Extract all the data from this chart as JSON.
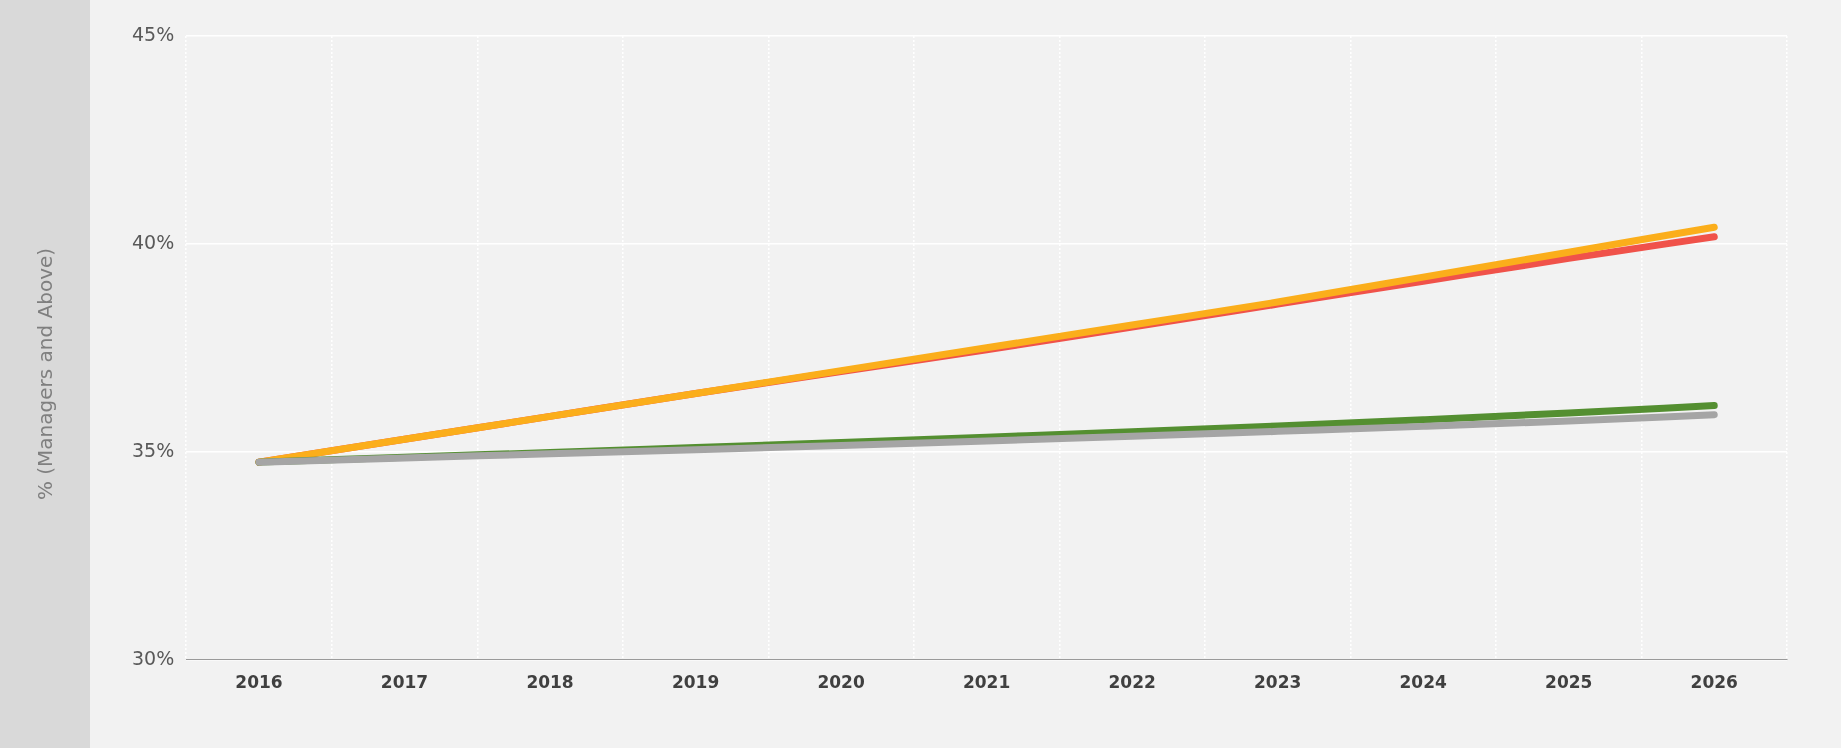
{
  "chart_data": {
    "type": "line",
    "ylabel": "% (Managers and Above)",
    "categories": [
      "2016",
      "2017",
      "2018",
      "2019",
      "2020",
      "2021",
      "2022",
      "2023",
      "2024",
      "2025",
      "2026"
    ],
    "series": [
      {
        "color": "#f0524a",
        "values": [
          34.75,
          35.3,
          35.85,
          36.4,
          36.93,
          37.45,
          38.0,
          38.55,
          39.1,
          39.65,
          40.17
        ]
      },
      {
        "color": "#fbae1b",
        "values": [
          34.75,
          35.3,
          35.85,
          36.4,
          36.95,
          37.5,
          38.05,
          38.6,
          39.2,
          39.8,
          40.4
        ]
      },
      {
        "color": "#548f31",
        "values": [
          34.75,
          34.87,
          34.98,
          35.1,
          35.22,
          35.35,
          35.48,
          35.62,
          35.77,
          35.93,
          36.11
        ]
      },
      {
        "color": "#a5a5a5",
        "values": [
          34.75,
          34.85,
          34.95,
          35.05,
          35.15,
          35.26,
          35.37,
          35.49,
          35.61,
          35.74,
          35.89
        ]
      }
    ],
    "ylim": [
      30,
      45
    ],
    "yticks": [
      {
        "value": 30,
        "label": "30%"
      },
      {
        "value": 35,
        "label": "35%"
      },
      {
        "value": 40,
        "label": "40%"
      },
      {
        "value": 45,
        "label": "45%"
      }
    ],
    "grid": true,
    "legend": false,
    "marker": "none",
    "line_style": "solid"
  }
}
